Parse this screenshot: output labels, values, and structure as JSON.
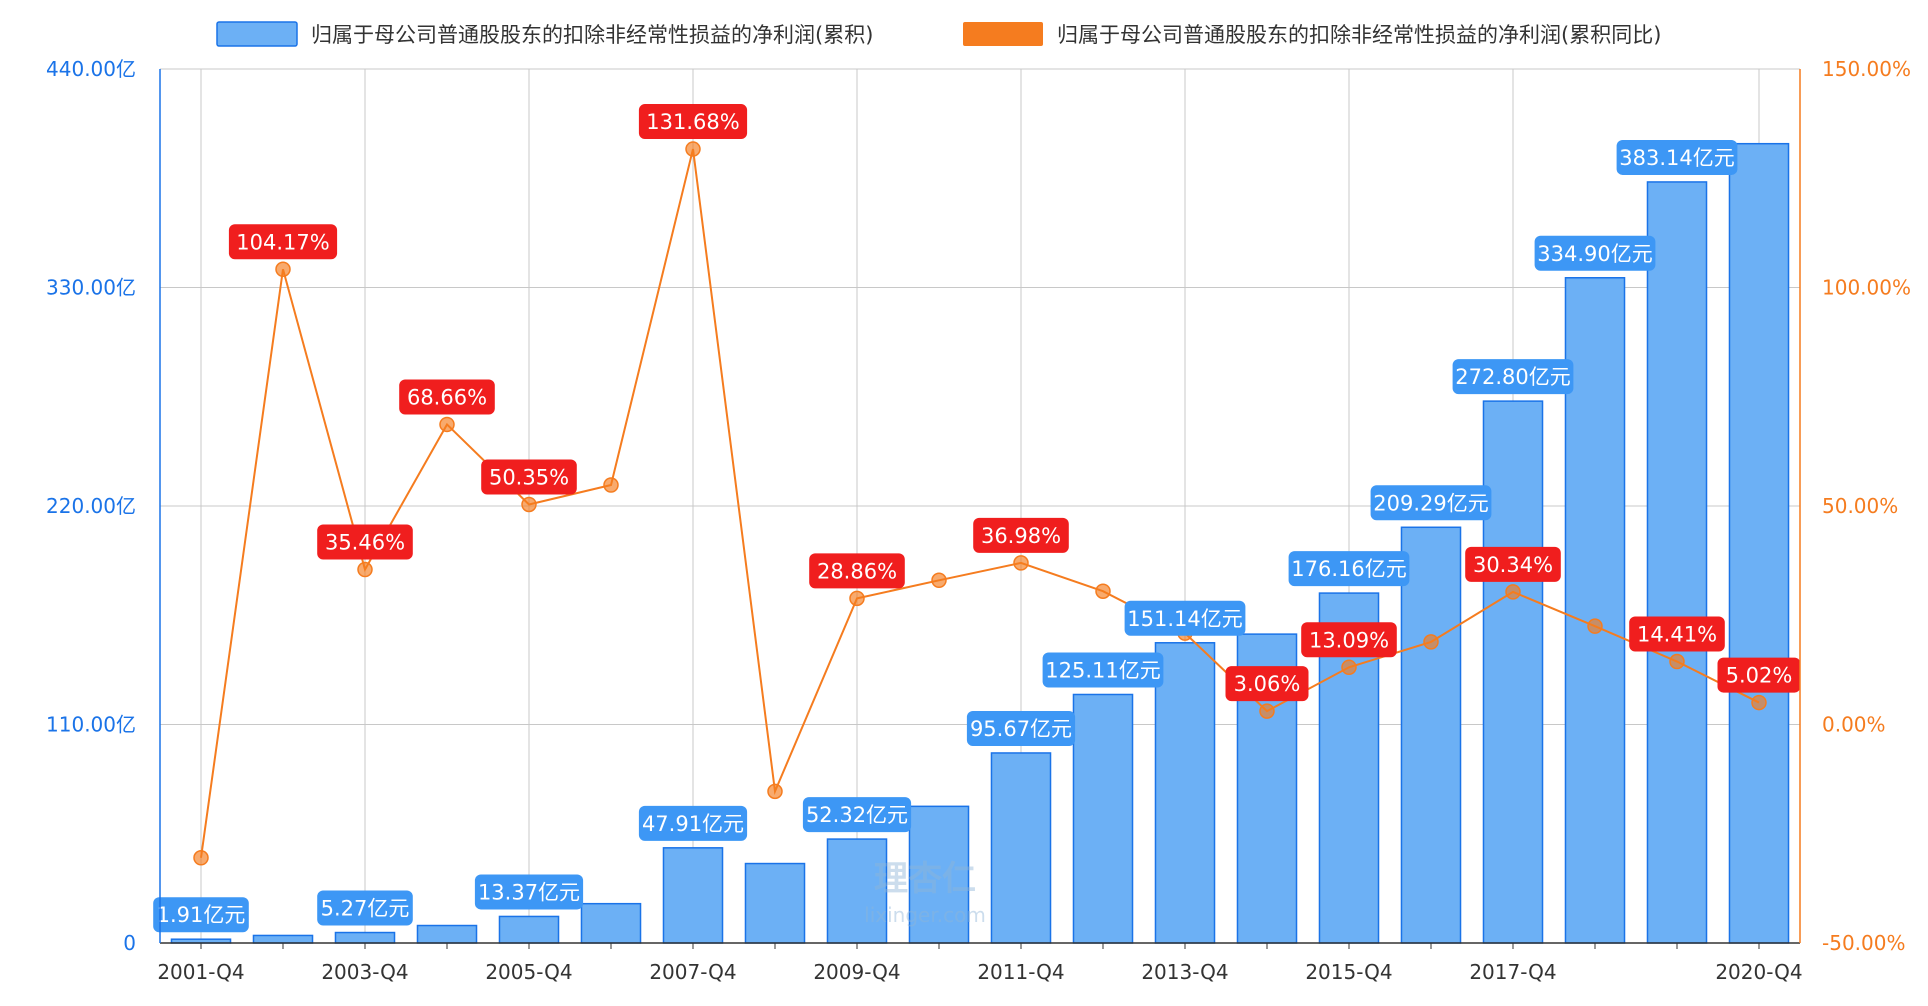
{
  "chart_data": {
    "type": "bar+line",
    "categories": [
      "2001-Q4",
      "2002-Q4",
      "2003-Q4",
      "2004-Q4",
      "2005-Q4",
      "2006-Q4",
      "2007-Q4",
      "2008-Q4",
      "2009-Q4",
      "2010-Q4",
      "2011-Q4",
      "2012-Q4",
      "2013-Q4",
      "2014-Q4",
      "2015-Q4",
      "2016-Q4",
      "2017-Q4",
      "2018-Q4",
      "2019-Q4",
      "2020-Q4"
    ],
    "x_tick_labels": [
      "2001-Q4",
      "",
      "2003-Q4",
      "",
      "2005-Q4",
      "",
      "2007-Q4",
      "",
      "2009-Q4",
      "",
      "2011-Q4",
      "",
      "2013-Q4",
      "",
      "2015-Q4",
      "",
      "2017-Q4",
      "",
      "",
      "2020-Q4"
    ],
    "series": [
      {
        "name": "归属于母公司普通股股东的扣除非经常性损益的净利润(累积)",
        "type": "bar",
        "axis": "left",
        "color": "#6cb0f5",
        "stroke": "#1a73e8",
        "values": [
          1.91,
          3.8,
          5.27,
          8.8,
          13.37,
          19.8,
          47.91,
          40.0,
          52.32,
          68.8,
          95.67,
          125.11,
          151.14,
          155.5,
          176.16,
          209.29,
          272.8,
          334.9,
          383.14,
          402.4
        ],
        "labels": [
          "1.91亿元",
          "",
          "5.27亿元",
          "",
          "13.37亿元",
          "",
          "47.91亿元",
          "",
          "52.32亿元",
          "",
          "95.67亿元",
          "125.11亿元",
          "151.14亿元",
          "",
          "176.16亿元",
          "209.29亿元",
          "272.80亿元",
          "334.90亿元",
          "383.14亿元",
          ""
        ],
        "label_color": "#3d97f5"
      },
      {
        "name": "归属于母公司普通股股东的扣除非经常性损益的净利润(累积同比)",
        "type": "line",
        "axis": "right",
        "color": "#f57c1f",
        "values": [
          -30.5,
          104.17,
          35.46,
          68.66,
          50.35,
          54.8,
          131.68,
          -15.3,
          28.86,
          33.0,
          36.98,
          30.5,
          20.9,
          3.06,
          13.09,
          18.9,
          30.34,
          22.5,
          14.41,
          5.02
        ],
        "labels": [
          "",
          "104.17%",
          "35.46%",
          "68.66%",
          "50.35%",
          "",
          "131.68%",
          "",
          "28.86%",
          "",
          "36.98%",
          "",
          "",
          "3.06%",
          "13.09%",
          "",
          "30.34%",
          "",
          "14.41%",
          "5.02%"
        ],
        "label_color": "#f01e1e"
      }
    ],
    "y_left": {
      "min": 0,
      "max": 440,
      "ticks": [
        "0",
        "110.00亿",
        "220.00亿",
        "330.00亿",
        "440.00亿"
      ],
      "color": "#1a73e8"
    },
    "y_right": {
      "min": -50,
      "max": 150,
      "ticks": [
        "-50.00%",
        "0.00%",
        "50.00%",
        "100.00%",
        "150.00%"
      ],
      "color": "#f57c1f"
    },
    "grid": true,
    "legend_position": "top",
    "watermark": {
      "main": "理杏仁",
      "sub": "lixinger.com"
    }
  }
}
